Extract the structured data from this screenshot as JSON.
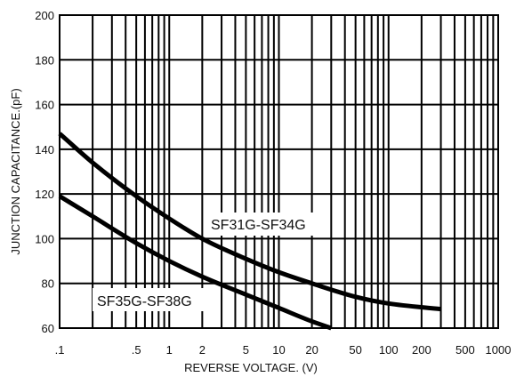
{
  "chart_data": {
    "type": "line",
    "xscale": "log",
    "xlim": [
      0.1,
      1000
    ],
    "ylim": [
      60,
      200
    ],
    "xlabel": "REVERSE VOLTAGE. (V)",
    "ylabel": "JUNCTION CAPACITANCE.(pF)",
    "grid": true,
    "x_tick_labels": [
      {
        "value": 0.1,
        "label": ".1"
      },
      {
        "value": 0.5,
        "label": ".5"
      },
      {
        "value": 1,
        "label": "1"
      },
      {
        "value": 2,
        "label": "2"
      },
      {
        "value": 5,
        "label": "5"
      },
      {
        "value": 10,
        "label": "10"
      },
      {
        "value": 20,
        "label": "20"
      },
      {
        "value": 50,
        "label": "50"
      },
      {
        "value": 100,
        "label": "100"
      },
      {
        "value": 200,
        "label": "200"
      },
      {
        "value": 500,
        "label": "500"
      },
      {
        "value": 1000,
        "label": "1000"
      }
    ],
    "y_tick_labels": [
      {
        "value": 60,
        "label": "60"
      },
      {
        "value": 80,
        "label": "80"
      },
      {
        "value": 100,
        "label": "100"
      },
      {
        "value": 120,
        "label": "120"
      },
      {
        "value": 140,
        "label": "140"
      },
      {
        "value": 160,
        "label": "160"
      },
      {
        "value": 180,
        "label": "180"
      },
      {
        "value": 200,
        "label": "200"
      }
    ],
    "series": [
      {
        "name": "SF31G-SF34G",
        "x": [
          0.1,
          0.2,
          0.5,
          1,
          2,
          5,
          10,
          20,
          50,
          100,
          300
        ],
        "y": [
          147,
          134,
          119,
          109,
          100,
          91,
          85,
          80,
          74,
          71,
          68.5
        ]
      },
      {
        "name": "SF35G-SF38G",
        "x": [
          0.1,
          0.2,
          0.5,
          1,
          2,
          5,
          10,
          20,
          30
        ],
        "y": [
          119,
          110,
          98,
          90,
          83,
          75,
          69,
          63,
          60
        ]
      }
    ],
    "series_labels": [
      "SF31G-SF34G",
      "SF35G-SF38G"
    ]
  }
}
